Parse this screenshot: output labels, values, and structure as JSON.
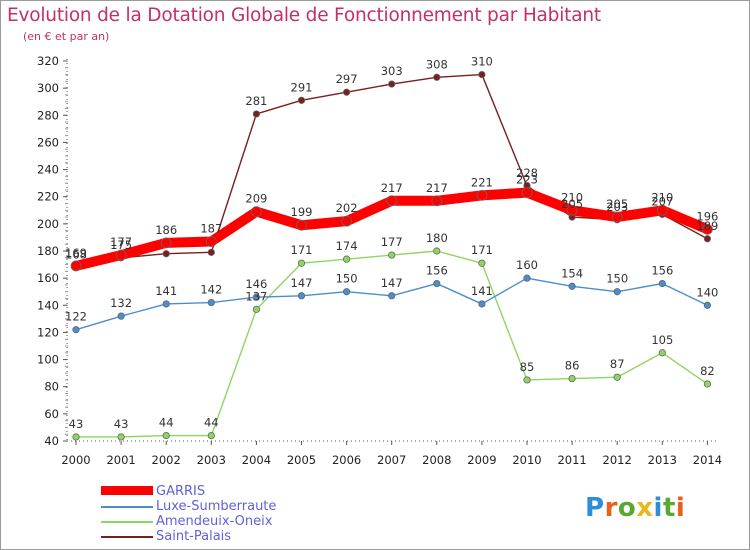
{
  "title": "Evolution de la Dotation Globale de Fonctionnement par Habitant",
  "subtitle": "(en € et par an)",
  "logo_text": "Proxiti",
  "logo_colors": [
    "#2a8fd8",
    "#e8601c",
    "#5aa832",
    "#e8b81c",
    "#2a8fd8",
    "#5aa832",
    "#e8601c"
  ],
  "chart_data": {
    "type": "line",
    "x": [
      "2000",
      "2001",
      "2002",
      "2003",
      "2004",
      "2005",
      "2006",
      "2007",
      "2008",
      "2009",
      "2010",
      "2011",
      "2012",
      "2013",
      "2014"
    ],
    "ylim": [
      40,
      320
    ],
    "yticks": [
      40,
      60,
      80,
      100,
      120,
      140,
      160,
      180,
      200,
      220,
      240,
      260,
      280,
      300,
      320
    ],
    "grid": false,
    "legend_position": "bottom-left",
    "series": [
      {
        "name": "Saint-Palais",
        "color": "#7a1f1f",
        "values": [
          168,
          175,
          178,
          179,
          281,
          291,
          297,
          303,
          308,
          310,
          228,
          205,
          203,
          207,
          189
        ],
        "labels": [
          "168",
          "175",
          "",
          "",
          "281",
          "291",
          "297",
          "303",
          "308",
          "310",
          "228",
          "205",
          "203",
          "207",
          "189"
        ]
      },
      {
        "name": "Amendeuix-Oneix",
        "color": "#8ed660",
        "values": [
          43,
          43,
          44,
          44,
          137,
          171,
          174,
          177,
          180,
          171,
          85,
          86,
          87,
          105,
          82
        ],
        "labels": [
          "43",
          "43",
          "44",
          "44",
          "137",
          "171",
          "174",
          "177",
          "180",
          "171",
          "85",
          "86",
          "87",
          "105",
          "82"
        ]
      },
      {
        "name": "Luxe-Sumberraute",
        "color": "#4a8ed0",
        "values": [
          122,
          132,
          141,
          142,
          146,
          147,
          150,
          147,
          156,
          141,
          160,
          154,
          150,
          156,
          140
        ],
        "labels": [
          "122",
          "132",
          "141",
          "142",
          "146",
          "147",
          "150",
          "147",
          "156",
          "141",
          "160",
          "154",
          "150",
          "156",
          "140"
        ]
      },
      {
        "name": "GARRIS",
        "color": "#ff0000",
        "values": [
          169,
          177,
          186,
          187,
          209,
          199,
          202,
          217,
          217,
          221,
          223,
          210,
          205,
          210,
          196
        ],
        "labels": [
          "169",
          "177",
          "186",
          "187",
          "209",
          "199",
          "202",
          "217",
          "217",
          "221",
          "223",
          "210",
          "205",
          "210",
          "196"
        ]
      }
    ]
  },
  "legend": [
    {
      "label": "GARRIS",
      "color": "#ff0000"
    },
    {
      "label": "Luxe-Sumberraute",
      "color": "#4a8ed0"
    },
    {
      "label": "Amendeuix-Oneix",
      "color": "#8ed660"
    },
    {
      "label": "Saint-Palais",
      "color": "#7a1f1f"
    }
  ]
}
